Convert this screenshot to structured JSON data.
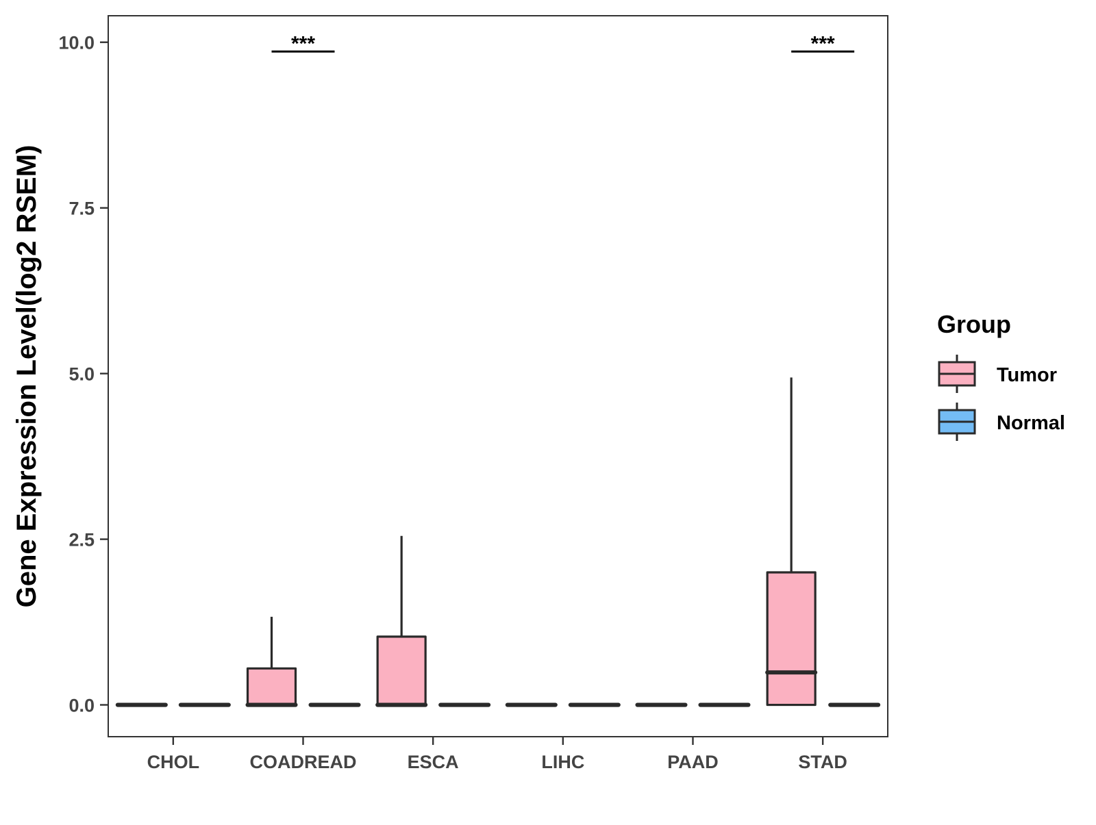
{
  "chart_data": {
    "type": "boxplot",
    "ylabel": "Gene Expression Level(log2 RSEM)",
    "xlabel": "",
    "ylim": [
      -0.48,
      10.4
    ],
    "yticks": [
      0.0,
      2.5,
      5.0,
      7.5,
      10.0
    ],
    "ytick_labels": [
      "0.0",
      "2.5",
      "5.0",
      "7.5",
      "10.0"
    ],
    "categories": [
      "CHOL",
      "COADREAD",
      "ESCA",
      "LIHC",
      "PAAD",
      "STAD"
    ],
    "grid": false,
    "legend": {
      "title": "Group",
      "placement": "right",
      "entries": [
        {
          "name": "Tumor",
          "color": "#FBB1C1"
        },
        {
          "name": "Normal",
          "color": "#74BCF5"
        }
      ]
    },
    "series": [
      {
        "name": "Tumor",
        "color": "#FBB1C1",
        "boxes": [
          {
            "min": 0,
            "q1": 0,
            "median": 0,
            "q3": 0,
            "max": 0
          },
          {
            "min": 0,
            "q1": 0,
            "median": 0,
            "q3": 0.55,
            "max": 1.33
          },
          {
            "min": 0,
            "q1": 0,
            "median": 0,
            "q3": 1.03,
            "max": 2.55
          },
          {
            "min": 0,
            "q1": 0,
            "median": 0,
            "q3": 0,
            "max": 0
          },
          {
            "min": 0,
            "q1": 0,
            "median": 0,
            "q3": 0,
            "max": 0
          },
          {
            "min": 0,
            "q1": 0,
            "median": 0.49,
            "q3": 2.0,
            "max": 4.94
          }
        ]
      },
      {
        "name": "Normal",
        "color": "#74BCF5",
        "boxes": [
          {
            "min": 0,
            "q1": 0,
            "median": 0,
            "q3": 0,
            "max": 0
          },
          {
            "min": 0,
            "q1": 0,
            "median": 0,
            "q3": 0,
            "max": 0
          },
          {
            "min": 0,
            "q1": 0,
            "median": 0,
            "q3": 0,
            "max": 0
          },
          {
            "min": 0,
            "q1": 0,
            "median": 0,
            "q3": 0,
            "max": 0
          },
          {
            "min": 0,
            "q1": 0,
            "median": 0,
            "q3": 0,
            "max": 0
          },
          {
            "min": 0,
            "q1": 0,
            "median": 0,
            "q3": 0,
            "max": 0
          }
        ]
      }
    ],
    "annotations": [
      {
        "category": "COADREAD",
        "text": "***",
        "y": 9.86
      },
      {
        "category": "STAD",
        "text": "***",
        "y": 9.86
      }
    ]
  }
}
